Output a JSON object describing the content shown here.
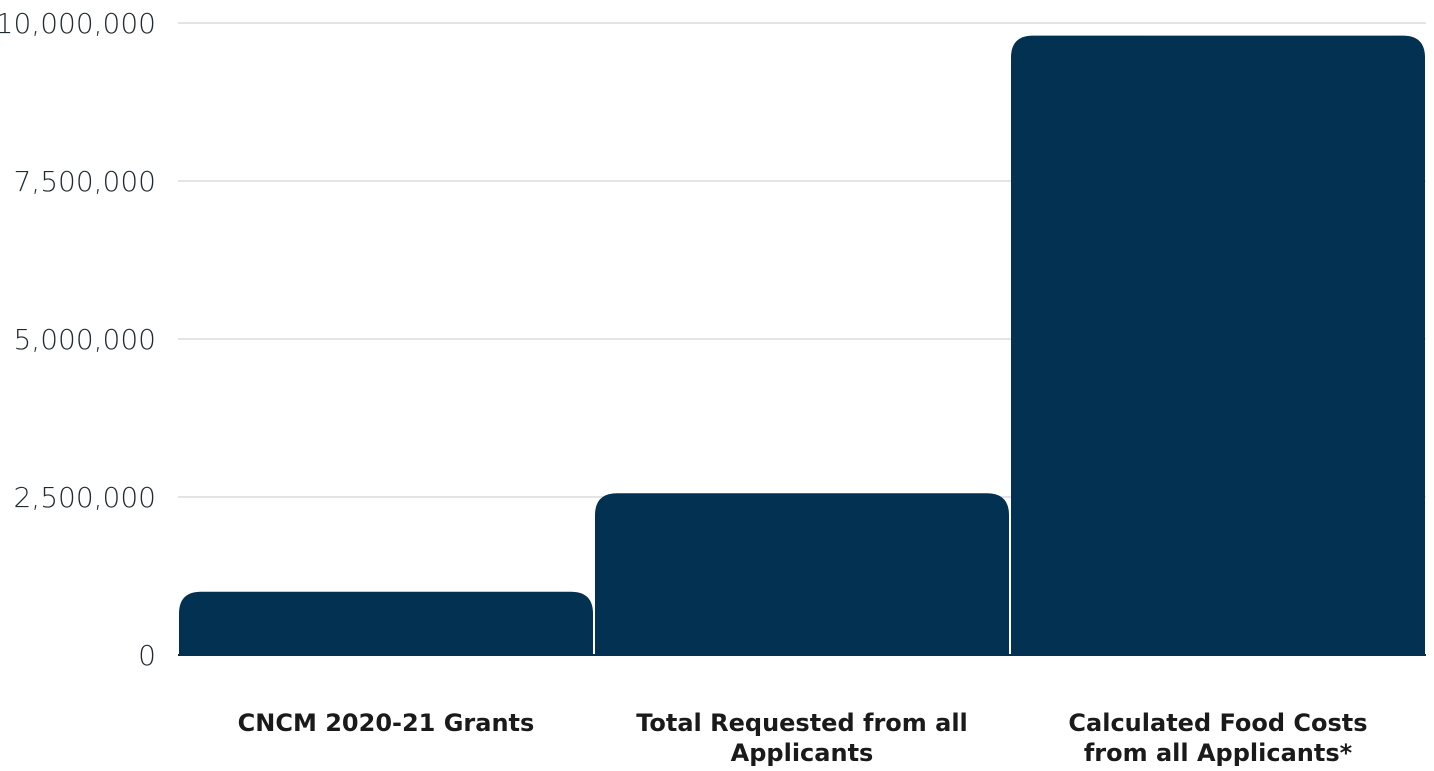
{
  "chart_data": {
    "type": "bar",
    "categories": [
      [
        "CNCM 2020-21 Grants"
      ],
      [
        "Total Requested from all",
        "Applicants"
      ],
      [
        "Calculated Food Costs",
        "from all Applicants*"
      ]
    ],
    "values": [
      1000000,
      2560000,
      9800000
    ],
    "ylim": [
      0,
      10000000
    ],
    "yticks": [
      0,
      2500000,
      5000000,
      7500000,
      10000000
    ],
    "ytick_labels": [
      "0",
      "2,500,000",
      "5,000,000",
      "7,500,000",
      "10,000,000"
    ],
    "grid": true,
    "colors": {
      "bar": "#033152",
      "grid": "#c8c8c8",
      "baseline": "#033152"
    }
  }
}
